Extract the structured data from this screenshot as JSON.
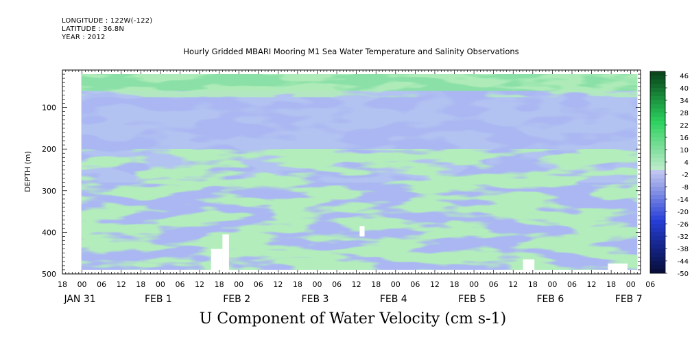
{
  "header": {
    "longitude": "LONGITUDE : 122W(-122)",
    "latitude": "LATITUDE : 36.8N",
    "year": "YEAR : 2012"
  },
  "chart_data": {
    "type": "heatmap",
    "title": "Hourly Gridded MBARI Mooring M1 Sea Water Temperature and Salinity Observations",
    "xlabel": "U Component of Water Velocity (cm s-1)",
    "ylabel": "DEPTH (m)",
    "x_range_hours_from_jan31_00": [
      -6,
      171
    ],
    "ylim": [
      500,
      10
    ],
    "y_ticks": [
      100,
      200,
      300,
      400,
      500
    ],
    "x_tick_hour_labels": [
      "18",
      "00",
      "06",
      "12",
      "18",
      "00",
      "06",
      "12",
      "18",
      "00",
      "06",
      "12",
      "18",
      "00",
      "06",
      "12",
      "18",
      "00",
      "06",
      "12",
      "18",
      "00",
      "06",
      "12",
      "18",
      "00",
      "06",
      "12",
      "18",
      "00",
      "06"
    ],
    "x_date_labels": [
      {
        "text": "JAN 31",
        "hour": 0
      },
      {
        "text": "FEB  1",
        "hour": 24
      },
      {
        "text": "FEB  2",
        "hour": 48
      },
      {
        "text": "FEB  3",
        "hour": 72
      },
      {
        "text": "FEB  4",
        "hour": 96
      },
      {
        "text": "FEB  5",
        "hour": 120
      },
      {
        "text": "FEB  6",
        "hour": 144
      },
      {
        "text": "FEB  7",
        "hour": 168
      }
    ],
    "colorbar": {
      "levels": [
        48,
        46,
        44,
        42,
        40,
        38,
        36,
        34,
        32,
        30,
        28,
        26,
        24,
        22,
        20,
        18,
        16,
        14,
        12,
        10,
        8,
        6,
        4,
        2,
        0,
        -2,
        -4,
        -6,
        -8,
        -10,
        -12,
        -14,
        -16,
        -18,
        -20,
        -22,
        -24,
        -26,
        -28,
        -30,
        -32,
        -34,
        -36,
        -38,
        -40,
        -42,
        -44,
        -46,
        -48,
        -50
      ],
      "labels": [
        "46",
        "40",
        "34",
        "28",
        "22",
        "16",
        "10",
        "4",
        "-2",
        "-8",
        "-14",
        "-20",
        "-26",
        "-32",
        "-38",
        "-44",
        "-50"
      ],
      "colors": {
        "strong_positive": "#0a5a22",
        "positive": "#27c257",
        "weak_positive": "#8ef0a0",
        "weak_negative": "#b3bff5",
        "negative": "#8a9be8",
        "strong_negative": "#0a0a5a"
      }
    },
    "field_bands": [
      {
        "depth_range": [
          20,
          60
        ],
        "dominant": "positive",
        "value": 6
      },
      {
        "depth_range": [
          60,
          260
        ],
        "dominant": "negative",
        "value": -10
      },
      {
        "depth_range": [
          260,
          490
        ],
        "dominant": "mixed",
        "value": -2
      }
    ]
  }
}
